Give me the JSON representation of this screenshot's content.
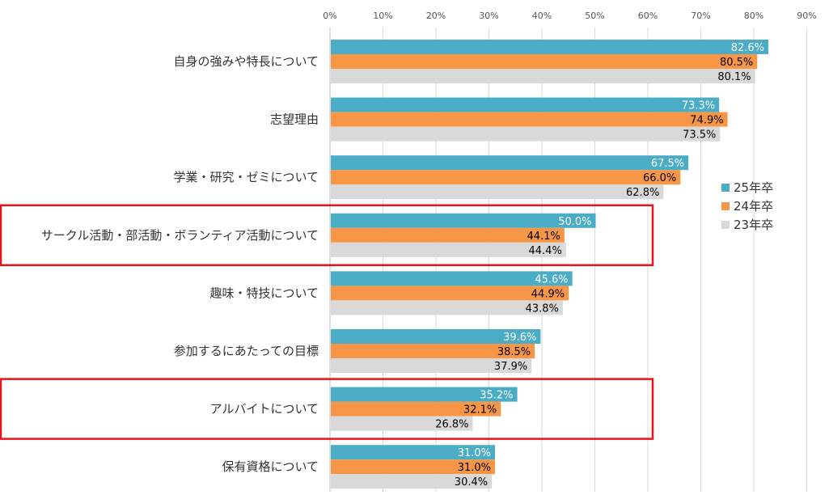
{
  "chart_data": {
    "type": "bar",
    "orientation": "horizontal",
    "xlim": [
      0,
      90
    ],
    "tick_labels": [
      "0%",
      "10%",
      "20%",
      "30%",
      "40%",
      "50%",
      "60%",
      "70%",
      "80%",
      "90%"
    ],
    "grid": "vertical",
    "legend_position": "right",
    "categories": [
      "自身の強みや特長について",
      "志望理由",
      "学業・研究・ゼミについて",
      "サークル活動・部活動・ボランティア活動について",
      "趣味・特技について",
      "参加するにあたっての目標",
      "アルバイトについて",
      "保有資格について"
    ],
    "series": [
      {
        "name": "25年卒",
        "color": "#4bacc6",
        "label_color": "#ffffff",
        "values": [
          82.6,
          73.3,
          67.5,
          50.0,
          45.6,
          39.6,
          35.2,
          31.0
        ],
        "labels": [
          "82.6%",
          "73.3%",
          "67.5%",
          "50.0%",
          "45.6%",
          "39.6%",
          "35.2%",
          "31.0%"
        ]
      },
      {
        "name": "24年卒",
        "color": "#f79646",
        "label_color": "#000000",
        "values": [
          80.5,
          74.9,
          66.0,
          44.1,
          44.9,
          38.5,
          32.1,
          31.0
        ],
        "labels": [
          "80.5%",
          "74.9%",
          "66.0%",
          "44.1%",
          "44.9%",
          "38.5%",
          "32.1%",
          "31.0%"
        ]
      },
      {
        "name": "23年卒",
        "color": "#d9d9d9",
        "label_color": "#000000",
        "values": [
          80.1,
          73.5,
          62.8,
          44.4,
          43.8,
          37.9,
          26.8,
          30.4
        ],
        "labels": [
          "80.1%",
          "73.5%",
          "62.8%",
          "44.4%",
          "43.8%",
          "37.9%",
          "26.8%",
          "30.4%"
        ]
      }
    ],
    "highlighted_categories": [
      "サークル活動・部活動・ボランティア活動について",
      "アルバイトについて"
    ],
    "highlight_color": "#e8141b"
  }
}
